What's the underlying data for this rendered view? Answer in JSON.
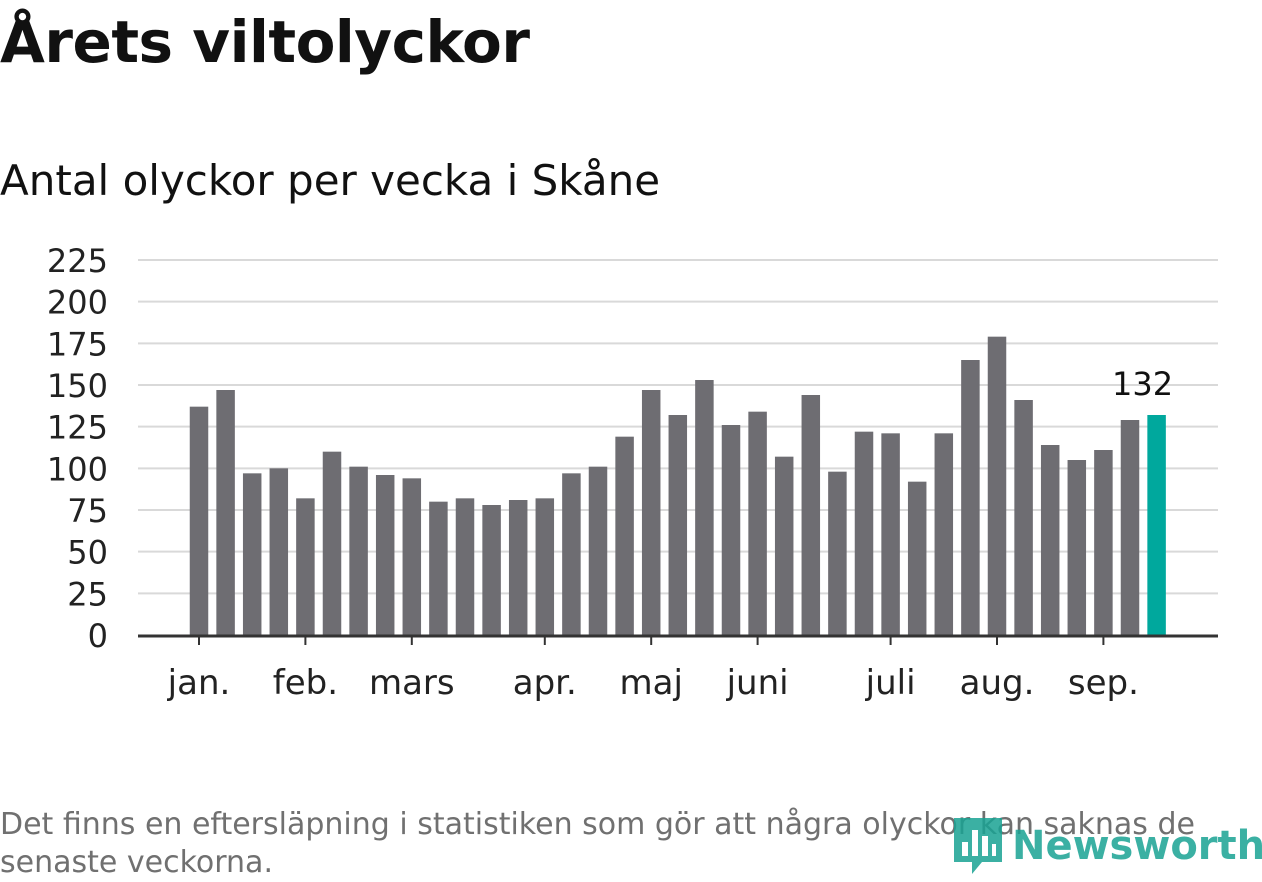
{
  "title": "Årets viltolyckor",
  "subtitle": "Antal olyckor per vecka i Skåne",
  "note": "Det finns en eftersläpning i statistiken som gör att några olyckor kan saknas de senaste veckorna.",
  "logo": {
    "text": "Newsworthy",
    "icon": "newsworthy-logo-icon"
  },
  "colors": {
    "bar": "#6e6d72",
    "highlight": "#00a89d",
    "grid": "#d9d9d9",
    "axis": "#333333",
    "logo": "#1aa394"
  },
  "chart_data": {
    "type": "bar",
    "ylim": [
      0,
      225
    ],
    "yticks": [
      0,
      25,
      50,
      75,
      100,
      125,
      150,
      175,
      200,
      225
    ],
    "grid": true,
    "values": [
      137,
      147,
      97,
      100,
      82,
      110,
      101,
      96,
      94,
      80,
      82,
      78,
      81,
      82,
      97,
      101,
      119,
      147,
      132,
      153,
      126,
      134,
      107,
      144,
      98,
      122,
      121,
      92,
      121,
      165,
      179,
      141,
      114,
      105,
      111,
      129,
      132
    ],
    "highlight_index": 36,
    "highlight_label": "132",
    "month_labels": [
      {
        "label": "jan.",
        "bar_index": 0
      },
      {
        "label": "feb.",
        "bar_index": 4
      },
      {
        "label": "mars",
        "bar_index": 8
      },
      {
        "label": "apr.",
        "bar_index": 13
      },
      {
        "label": "maj",
        "bar_index": 17
      },
      {
        "label": "juni",
        "bar_index": 21
      },
      {
        "label": "juli",
        "bar_index": 26
      },
      {
        "label": "aug.",
        "bar_index": 30
      },
      {
        "label": "sep.",
        "bar_index": 34
      }
    ]
  }
}
